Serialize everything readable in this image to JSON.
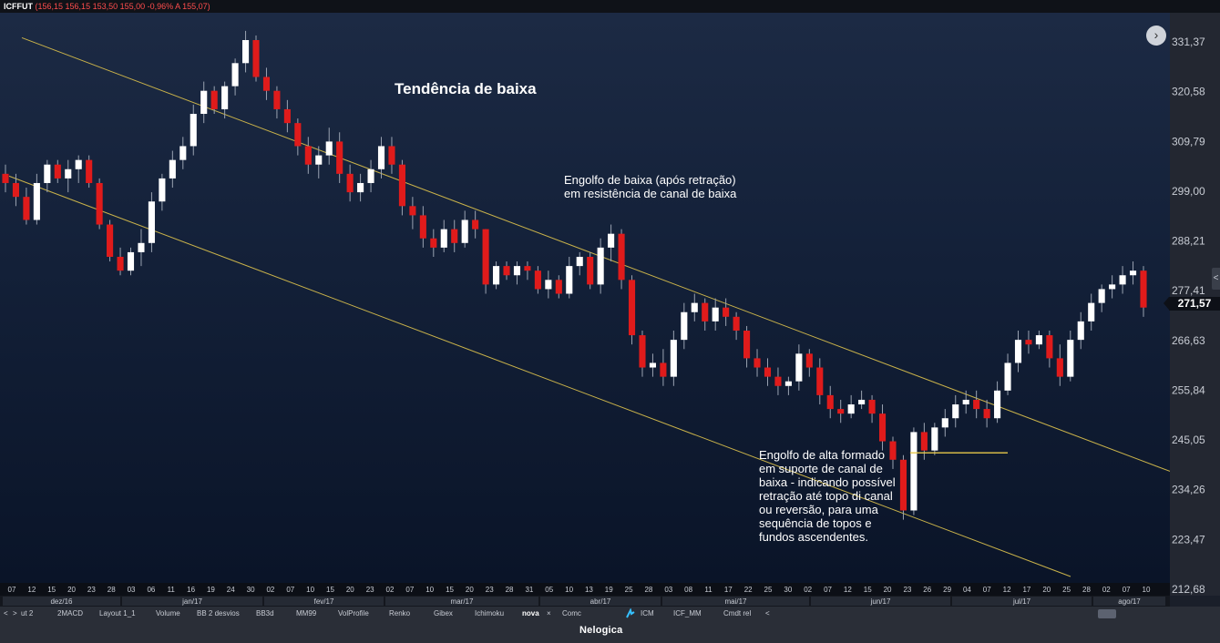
{
  "header": {
    "symbol": "ICFFUT",
    "quote": "(156,15  156,15  153,50  155,00  -0,96%  A 155,07)"
  },
  "annotations": {
    "title": "Tendência de baixa",
    "bearish_note": "Engolfo de baixa (após retração) em resistência de canal de baixa",
    "bullish_note": "Engolfo de alta formado em suporte de canal de baixa - indicando possível retração até topo di canal ou reversão, para uma sequência de topos e fundos ascendentes."
  },
  "price_badge": "271,57",
  "nav_button": "›",
  "colors": {
    "up": "#ffffff",
    "down": "#e01b1b",
    "wick": "#9aa3b2",
    "channel": "#c9b24a",
    "support_line": "#e8c84a"
  },
  "tabs": {
    "nav_prev": "<",
    "nav_next": ">",
    "items": [
      "ut 2",
      "2MACD",
      "Layout 1_1",
      "Volume",
      "BB 2 desvios",
      "BB3d",
      "MM99",
      "VolProfile",
      "Renko",
      "Gibex",
      "Ichimoku",
      "nova",
      "Comc",
      "ICM",
      "ICF_MM",
      "Cmdt rel"
    ],
    "active": "nova",
    "close_symbol": "×",
    "end_arrow": "<"
  },
  "footer": {
    "brand": "Nelogica"
  },
  "chart_data": {
    "type": "candlestick",
    "title": "",
    "ylim": [
      212.68,
      331.37
    ],
    "y_ticks": [
      "331,37",
      "320,58",
      "309,79",
      "299,00",
      "288,21",
      "277,41",
      "266,63",
      "255,84",
      "245,05",
      "234,26",
      "223,47",
      "212,68"
    ],
    "x_day_labels": [
      "07",
      "12",
      "15",
      "20",
      "23",
      "28",
      "03",
      "06",
      "11",
      "16",
      "19",
      "24",
      "30",
      "02",
      "07",
      "10",
      "15",
      "20",
      "23",
      "02",
      "07",
      "10",
      "15",
      "20",
      "23",
      "28",
      "31",
      "05",
      "10",
      "13",
      "19",
      "25",
      "28",
      "03",
      "08",
      "11",
      "17",
      "22",
      "25",
      "30",
      "02",
      "07",
      "12",
      "15",
      "20",
      "23",
      "26",
      "29",
      "04",
      "07",
      "12",
      "17",
      "20",
      "25",
      "28",
      "02",
      "07",
      "10"
    ],
    "x_month_labels": [
      "dez/16",
      "jan/17",
      "fev/17",
      "mar/17",
      "abr/17",
      "mai/17",
      "jun/17",
      "jul/17",
      "ago/17"
    ],
    "candles": [
      [
        300,
        302,
        296,
        298
      ],
      [
        298,
        300,
        293,
        295
      ],
      [
        295,
        297,
        289,
        290
      ],
      [
        290,
        300,
        289,
        298
      ],
      [
        298,
        303,
        296,
        302
      ],
      [
        302,
        303,
        298,
        299
      ],
      [
        299,
        303,
        296,
        301
      ],
      [
        301,
        304,
        298,
        303
      ],
      [
        303,
        304,
        297,
        298
      ],
      [
        298,
        299,
        288,
        289
      ],
      [
        289,
        290,
        281,
        282
      ],
      [
        282,
        284,
        278,
        279
      ],
      [
        279,
        284,
        278,
        283
      ],
      [
        283,
        288,
        280,
        285
      ],
      [
        285,
        296,
        283,
        294
      ],
      [
        294,
        300,
        292,
        299
      ],
      [
        299,
        305,
        297,
        303
      ],
      [
        303,
        308,
        301,
        306
      ],
      [
        306,
        315,
        304,
        313
      ],
      [
        313,
        320,
        311,
        318
      ],
      [
        318,
        319,
        313,
        314
      ],
      [
        314,
        320,
        312,
        319
      ],
      [
        319,
        325,
        317,
        324
      ],
      [
        324,
        331,
        322,
        329
      ],
      [
        329,
        330,
        320,
        321
      ],
      [
        321,
        323,
        316,
        318
      ],
      [
        318,
        319,
        312,
        314
      ],
      [
        314,
        316,
        309,
        311
      ],
      [
        311,
        312,
        304,
        306
      ],
      [
        306,
        308,
        300,
        302
      ],
      [
        302,
        306,
        299,
        304
      ],
      [
        304,
        310,
        302,
        307
      ],
      [
        307,
        309,
        298,
        300
      ],
      [
        300,
        302,
        294,
        296
      ],
      [
        296,
        300,
        294,
        298
      ],
      [
        298,
        303,
        296,
        301
      ],
      [
        301,
        308,
        299,
        306
      ],
      [
        306,
        308,
        300,
        302
      ],
      [
        302,
        303,
        291,
        293
      ],
      [
        293,
        295,
        288,
        291
      ],
      [
        291,
        293,
        284,
        286
      ],
      [
        286,
        288,
        282,
        284
      ],
      [
        284,
        290,
        283,
        288
      ],
      [
        288,
        290,
        283,
        285
      ],
      [
        285,
        292,
        284,
        290
      ],
      [
        290,
        292,
        286,
        288
      ],
      [
        288,
        288,
        274,
        276
      ],
      [
        276,
        281,
        275,
        280
      ],
      [
        280,
        281,
        277,
        278
      ],
      [
        278,
        281,
        276,
        280
      ],
      [
        280,
        281,
        277,
        279
      ],
      [
        279,
        280,
        274,
        275
      ],
      [
        275,
        279,
        273,
        277
      ],
      [
        277,
        278,
        273,
        274
      ],
      [
        274,
        282,
        273,
        280
      ],
      [
        280,
        283,
        278,
        282
      ],
      [
        282,
        283,
        275,
        276
      ],
      [
        276,
        286,
        274,
        284
      ],
      [
        284,
        289,
        281,
        287
      ],
      [
        287,
        288,
        275,
        277
      ],
      [
        277,
        278,
        263,
        265
      ],
      [
        265,
        266,
        256,
        258
      ],
      [
        258,
        261,
        256,
        259
      ],
      [
        259,
        262,
        254,
        256
      ],
      [
        256,
        266,
        254,
        264
      ],
      [
        264,
        272,
        262,
        270
      ],
      [
        270,
        274,
        268,
        272
      ],
      [
        272,
        273,
        266,
        268
      ],
      [
        268,
        273,
        266,
        271
      ],
      [
        271,
        273,
        267,
        269
      ],
      [
        269,
        270,
        264,
        266
      ],
      [
        266,
        267,
        258,
        260
      ],
      [
        260,
        262,
        256,
        258
      ],
      [
        258,
        260,
        254,
        256
      ],
      [
        256,
        258,
        252,
        254
      ],
      [
        254,
        256,
        252,
        255
      ],
      [
        255,
        263,
        253,
        261
      ],
      [
        261,
        262,
        256,
        258
      ],
      [
        258,
        260,
        250,
        252
      ],
      [
        252,
        254,
        247,
        249
      ],
      [
        249,
        251,
        246,
        248
      ],
      [
        248,
        252,
        247,
        250
      ],
      [
        250,
        253,
        249,
        251
      ],
      [
        251,
        252,
        246,
        248
      ],
      [
        248,
        250,
        240,
        242
      ],
      [
        242,
        243,
        236,
        238
      ],
      [
        238,
        239,
        225,
        227
      ],
      [
        227,
        245,
        226,
        244
      ],
      [
        244,
        246,
        238,
        240
      ],
      [
        240,
        246,
        239,
        245
      ],
      [
        245,
        249,
        243,
        247
      ],
      [
        247,
        252,
        245,
        250
      ],
      [
        250,
        253,
        248,
        251
      ],
      [
        251,
        253,
        247,
        249
      ],
      [
        249,
        251,
        245,
        247
      ],
      [
        247,
        255,
        246,
        253
      ],
      [
        253,
        261,
        252,
        259
      ],
      [
        259,
        266,
        257,
        264
      ],
      [
        264,
        266,
        261,
        263
      ],
      [
        263,
        266,
        262,
        265
      ],
      [
        265,
        266,
        258,
        260
      ],
      [
        260,
        263,
        254,
        256
      ],
      [
        256,
        266,
        255,
        264
      ],
      [
        264,
        270,
        262,
        268
      ],
      [
        268,
        274,
        266,
        272
      ],
      [
        272,
        276,
        270,
        275
      ],
      [
        275,
        278,
        273,
        276
      ],
      [
        276,
        280,
        274,
        278
      ],
      [
        278,
        281,
        276,
        279
      ],
      [
        279,
        280,
        269,
        271
      ]
    ],
    "channel": {
      "upper": [
        [
          24,
          329.5
        ],
        [
          1284,
          235.5
        ]
      ],
      "lower": [
        [
          10,
          299.5
        ],
        [
          1175,
          212.68
        ]
      ]
    },
    "support_level": 239.5
  }
}
